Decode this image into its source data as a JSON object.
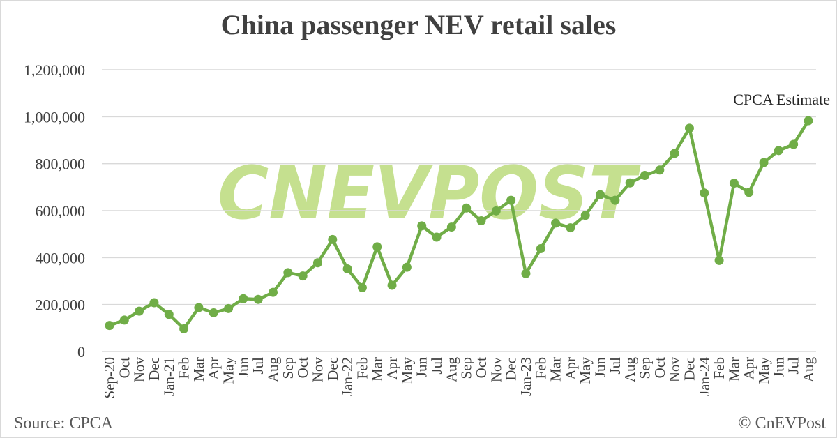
{
  "title": "China passenger NEV retail sales",
  "footer": {
    "source": "Source: CPCA",
    "copyright": "© CnEVPost"
  },
  "watermark": "CNEVPOST",
  "colors": {
    "line": "#70ad47",
    "grid": "#d9d9d9",
    "watermark": "#c5e08f",
    "text": "#404040"
  },
  "chart_data": {
    "type": "line",
    "title": "China passenger NEV retail sales",
    "xlabel": "",
    "ylabel": "",
    "ylim": [
      0,
      1200000
    ],
    "yticks": [
      0,
      200000,
      400000,
      600000,
      800000,
      1000000,
      1200000
    ],
    "ytick_labels": [
      "0",
      "200,000",
      "400,000",
      "600,000",
      "800,000",
      "1,000,000",
      "1,200,000"
    ],
    "grid": "horizontal",
    "legend": "none",
    "annotations": [
      {
        "text": "CPCA Estimate",
        "x": "Aug",
        "position": "above last point"
      }
    ],
    "categories": [
      "Sep-20",
      "Oct",
      "Nov",
      "Dec",
      "Jan-21",
      "Feb",
      "Mar",
      "Apr",
      "May",
      "Jun",
      "Jul",
      "Aug",
      "Sep",
      "Oct",
      "Nov",
      "Dec",
      "Jan-22",
      "Feb",
      "Mar",
      "Apr",
      "May",
      "Jun",
      "Jul",
      "Aug",
      "Sep",
      "Oct",
      "Nov",
      "Dec",
      "Jan-23",
      "Feb",
      "Mar",
      "Apr",
      "May",
      "Jun",
      "Jul",
      "Aug",
      "Sep",
      "Oct",
      "Nov",
      "Dec",
      "Jan-24",
      "Feb",
      "Mar",
      "Apr",
      "May",
      "Jun",
      "Jul",
      "Aug"
    ],
    "series": [
      {
        "name": "NEV retail sales",
        "values": [
          111000,
          134000,
          172000,
          208000,
          158000,
          97000,
          187000,
          165000,
          183000,
          225000,
          222000,
          252000,
          336000,
          322000,
          378000,
          477000,
          352000,
          272000,
          446000,
          282000,
          359000,
          535000,
          487000,
          530000,
          611000,
          557000,
          599000,
          644000,
          332000,
          438000,
          547000,
          527000,
          580000,
          668000,
          644000,
          718000,
          750000,
          773000,
          844000,
          951000,
          675000,
          388000,
          717000,
          678000,
          805000,
          856000,
          882000,
          983000
        ]
      }
    ]
  }
}
